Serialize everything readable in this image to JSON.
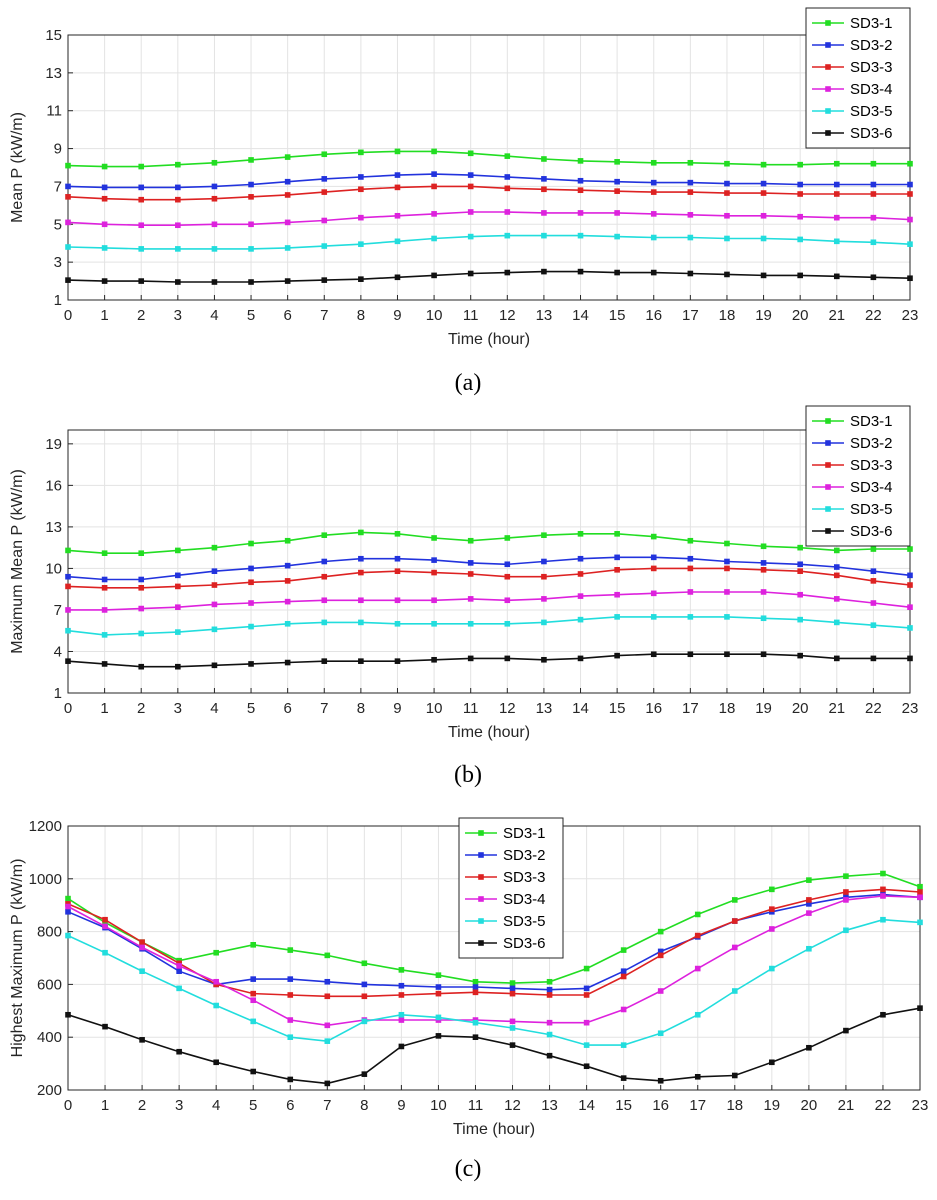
{
  "chart_data": [
    {
      "type": "line",
      "panel_label": "(a)",
      "xlabel": "Time (hour)",
      "ylabel": "Mean P (kW/m)",
      "xlim": [
        0,
        23
      ],
      "ylim": [
        1,
        15
      ],
      "x_ticks": [
        0,
        1,
        2,
        3,
        4,
        5,
        6,
        7,
        8,
        9,
        10,
        11,
        12,
        13,
        14,
        15,
        16,
        17,
        18,
        19,
        20,
        21,
        22,
        23
      ],
      "y_ticks": [
        1,
        3,
        5,
        7,
        9,
        11,
        13,
        15
      ],
      "grid": true,
      "legend_position": "top-right",
      "x": [
        0,
        1,
        2,
        3,
        4,
        5,
        6,
        7,
        8,
        9,
        10,
        11,
        12,
        13,
        14,
        15,
        16,
        17,
        18,
        19,
        20,
        21,
        22,
        23
      ],
      "series": [
        {
          "name": "SD3-1",
          "color": "#22dd22",
          "values": [
            8.1,
            8.05,
            8.05,
            8.15,
            8.25,
            8.4,
            8.55,
            8.7,
            8.8,
            8.85,
            8.85,
            8.75,
            8.6,
            8.45,
            8.35,
            8.3,
            8.25,
            8.25,
            8.2,
            8.15,
            8.15,
            8.2,
            8.2,
            8.2
          ]
        },
        {
          "name": "SD3-2",
          "color": "#2233dd",
          "values": [
            7.0,
            6.95,
            6.95,
            6.95,
            7.0,
            7.1,
            7.25,
            7.4,
            7.5,
            7.6,
            7.65,
            7.6,
            7.5,
            7.4,
            7.3,
            7.25,
            7.2,
            7.2,
            7.15,
            7.15,
            7.1,
            7.1,
            7.1,
            7.1
          ]
        },
        {
          "name": "SD3-3",
          "color": "#dd2222",
          "values": [
            6.45,
            6.35,
            6.3,
            6.3,
            6.35,
            6.45,
            6.55,
            6.7,
            6.85,
            6.95,
            7.0,
            7.0,
            6.9,
            6.85,
            6.8,
            6.75,
            6.7,
            6.7,
            6.65,
            6.65,
            6.6,
            6.6,
            6.6,
            6.6
          ]
        },
        {
          "name": "SD3-4",
          "color": "#dd22dd",
          "values": [
            5.1,
            5.0,
            4.95,
            4.95,
            5.0,
            5.0,
            5.1,
            5.2,
            5.35,
            5.45,
            5.55,
            5.65,
            5.65,
            5.6,
            5.6,
            5.6,
            5.55,
            5.5,
            5.45,
            5.45,
            5.4,
            5.35,
            5.35,
            5.25
          ]
        },
        {
          "name": "SD3-5",
          "color": "#22dddd",
          "values": [
            3.8,
            3.75,
            3.7,
            3.7,
            3.7,
            3.7,
            3.75,
            3.85,
            3.95,
            4.1,
            4.25,
            4.35,
            4.4,
            4.4,
            4.4,
            4.35,
            4.3,
            4.3,
            4.25,
            4.25,
            4.2,
            4.1,
            4.05,
            3.95
          ]
        },
        {
          "name": "SD3-6",
          "color": "#111111",
          "values": [
            2.05,
            2.0,
            2.0,
            1.95,
            1.95,
            1.95,
            2.0,
            2.05,
            2.1,
            2.2,
            2.3,
            2.4,
            2.45,
            2.5,
            2.5,
            2.45,
            2.45,
            2.4,
            2.35,
            2.3,
            2.3,
            2.25,
            2.2,
            2.15
          ]
        }
      ]
    },
    {
      "type": "line",
      "panel_label": "(b)",
      "xlabel": "Time (hour)",
      "ylabel": "Maximum Mean P (kW/m)",
      "xlim": [
        0,
        23
      ],
      "ylim": [
        1,
        20
      ],
      "x_ticks": [
        0,
        1,
        2,
        3,
        4,
        5,
        6,
        7,
        8,
        9,
        10,
        11,
        12,
        13,
        14,
        15,
        16,
        17,
        18,
        19,
        20,
        21,
        22,
        23
      ],
      "y_ticks": [
        1,
        4,
        7,
        10,
        13,
        16,
        19
      ],
      "grid": true,
      "legend_position": "top-right",
      "x": [
        0,
        1,
        2,
        3,
        4,
        5,
        6,
        7,
        8,
        9,
        10,
        11,
        12,
        13,
        14,
        15,
        16,
        17,
        18,
        19,
        20,
        21,
        22,
        23
      ],
      "series": [
        {
          "name": "SD3-1",
          "color": "#22dd22",
          "values": [
            11.3,
            11.1,
            11.1,
            11.3,
            11.5,
            11.8,
            12.0,
            12.4,
            12.6,
            12.5,
            12.2,
            12.0,
            12.2,
            12.4,
            12.5,
            12.5,
            12.3,
            12.0,
            11.8,
            11.6,
            11.5,
            11.3,
            11.4,
            11.4
          ]
        },
        {
          "name": "SD3-2",
          "color": "#2233dd",
          "values": [
            9.4,
            9.2,
            9.2,
            9.5,
            9.8,
            10.0,
            10.2,
            10.5,
            10.7,
            10.7,
            10.6,
            10.4,
            10.3,
            10.5,
            10.7,
            10.8,
            10.8,
            10.7,
            10.5,
            10.4,
            10.3,
            10.1,
            9.8,
            9.5
          ]
        },
        {
          "name": "SD3-3",
          "color": "#dd2222",
          "values": [
            8.7,
            8.6,
            8.6,
            8.7,
            8.8,
            9.0,
            9.1,
            9.4,
            9.7,
            9.8,
            9.7,
            9.6,
            9.4,
            9.4,
            9.6,
            9.9,
            10.0,
            10.0,
            10.0,
            9.9,
            9.8,
            9.5,
            9.1,
            8.8
          ]
        },
        {
          "name": "SD3-4",
          "color": "#dd22dd",
          "values": [
            7.0,
            7.0,
            7.1,
            7.2,
            7.4,
            7.5,
            7.6,
            7.7,
            7.7,
            7.7,
            7.7,
            7.8,
            7.7,
            7.8,
            8.0,
            8.1,
            8.2,
            8.3,
            8.3,
            8.3,
            8.1,
            7.8,
            7.5,
            7.2
          ]
        },
        {
          "name": "SD3-5",
          "color": "#22dddd",
          "values": [
            5.5,
            5.2,
            5.3,
            5.4,
            5.6,
            5.8,
            6.0,
            6.1,
            6.1,
            6.0,
            6.0,
            6.0,
            6.0,
            6.1,
            6.3,
            6.5,
            6.5,
            6.5,
            6.5,
            6.4,
            6.3,
            6.1,
            5.9,
            5.7
          ]
        },
        {
          "name": "SD3-6",
          "color": "#111111",
          "values": [
            3.3,
            3.1,
            2.9,
            2.9,
            3.0,
            3.1,
            3.2,
            3.3,
            3.3,
            3.3,
            3.4,
            3.5,
            3.5,
            3.4,
            3.5,
            3.7,
            3.8,
            3.8,
            3.8,
            3.8,
            3.7,
            3.5,
            3.5,
            3.5
          ]
        }
      ]
    },
    {
      "type": "line",
      "panel_label": "(c)",
      "xlabel": "Time (hour)",
      "ylabel": "Highest Maximum P (kW/m)",
      "xlim": [
        0,
        23
      ],
      "ylim": [
        200,
        1200
      ],
      "x_ticks": [
        0,
        1,
        2,
        3,
        4,
        5,
        6,
        7,
        8,
        9,
        10,
        11,
        12,
        13,
        14,
        15,
        16,
        17,
        18,
        19,
        20,
        21,
        22,
        23
      ],
      "y_ticks": [
        200,
        400,
        600,
        800,
        1000,
        1200
      ],
      "grid": true,
      "legend_position": "top-center",
      "x": [
        0,
        1,
        2,
        3,
        4,
        5,
        6,
        7,
        8,
        9,
        10,
        11,
        12,
        13,
        14,
        15,
        16,
        17,
        18,
        19,
        20,
        21,
        22,
        23
      ],
      "series": [
        {
          "name": "SD3-1",
          "color": "#22dd22",
          "values": [
            925,
            835,
            760,
            690,
            720,
            750,
            730,
            710,
            680,
            655,
            635,
            610,
            605,
            610,
            660,
            730,
            800,
            865,
            920,
            960,
            995,
            1010,
            1020,
            970
          ]
        },
        {
          "name": "SD3-2",
          "color": "#2233dd",
          "values": [
            875,
            815,
            735,
            650,
            600,
            620,
            620,
            610,
            600,
            595,
            590,
            590,
            585,
            580,
            585,
            650,
            725,
            780,
            840,
            875,
            905,
            930,
            940,
            930
          ]
        },
        {
          "name": "SD3-3",
          "color": "#dd2222",
          "values": [
            905,
            845,
            760,
            680,
            600,
            565,
            560,
            555,
            555,
            560,
            565,
            570,
            565,
            560,
            560,
            630,
            710,
            785,
            840,
            885,
            920,
            950,
            960,
            950
          ]
        },
        {
          "name": "SD3-4",
          "color": "#dd22dd",
          "values": [
            895,
            820,
            740,
            670,
            610,
            540,
            465,
            445,
            465,
            465,
            465,
            465,
            460,
            455,
            455,
            505,
            575,
            660,
            740,
            810,
            870,
            920,
            935,
            930
          ]
        },
        {
          "name": "SD3-5",
          "color": "#22dddd",
          "values": [
            785,
            720,
            650,
            585,
            520,
            460,
            400,
            385,
            460,
            485,
            475,
            455,
            435,
            410,
            370,
            370,
            415,
            485,
            575,
            660,
            735,
            805,
            845,
            835
          ]
        },
        {
          "name": "SD3-6",
          "color": "#111111",
          "values": [
            485,
            440,
            390,
            345,
            305,
            270,
            240,
            225,
            260,
            365,
            405,
            400,
            370,
            330,
            290,
            245,
            235,
            250,
            255,
            305,
            360,
            425,
            485,
            510
          ]
        }
      ]
    }
  ]
}
